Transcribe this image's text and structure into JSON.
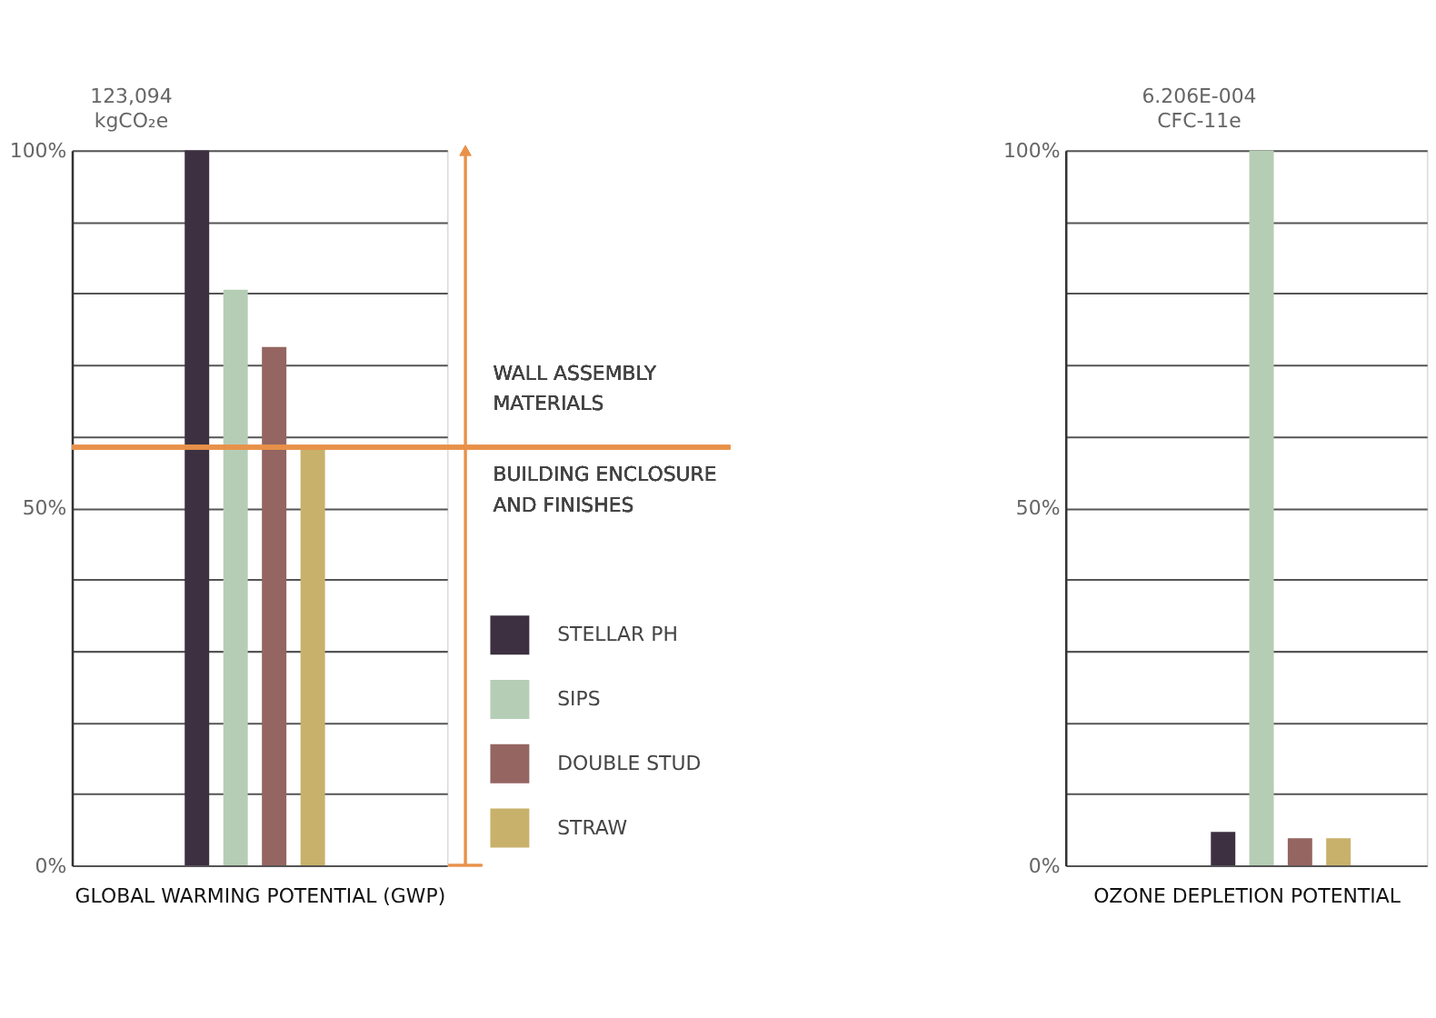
{
  "chart_data": [
    {
      "type": "bar",
      "title": "123,094",
      "subtitle": "kgCO₂e",
      "xlabel": "GLOBAL WARMING POTENTIAL (GWP)",
      "categories": [
        null
      ],
      "series": [
        {
          "name": "STELLAR PH",
          "color": "#3d3141",
          "values": [
            100
          ]
        },
        {
          "name": "SIPS",
          "color": "#b5cdb5",
          "values": [
            80.5
          ]
        },
        {
          "name": "DOUBLE STUD",
          "color": "#946561",
          "values": [
            72.5
          ]
        },
        {
          "name": "STRAW",
          "color": "#c8b16b",
          "values": [
            58.5
          ]
        }
      ],
      "ylim": [
        0,
        100
      ],
      "yticks": [
        {
          "value": 0,
          "label": "0%"
        },
        {
          "value": 10,
          "label": null
        },
        {
          "value": 20,
          "label": null
        },
        {
          "value": 30,
          "label": null
        },
        {
          "value": 40,
          "label": null
        },
        {
          "value": 50,
          "label": "50%"
        },
        {
          "value": 60,
          "label": null
        },
        {
          "value": 70,
          "label": null
        },
        {
          "value": 80,
          "label": null
        },
        {
          "value": 90,
          "label": null
        },
        {
          "value": 100,
          "label": "100%"
        }
      ],
      "ref_lines": [
        {
          "axis": "y",
          "value": 58.5,
          "color": "#e8914a"
        }
      ],
      "annotations": [
        "WALL ASSEMBLY MATERIALS",
        "BUILDING ENCLOSURE AND FINISHES"
      ],
      "grid": "y",
      "legend": "right",
      "tick_labels": "y"
    },
    {
      "type": "bar",
      "title": "6.206E-004",
      "subtitle": "CFC-11e",
      "xlabel": "OZONE DEPLETION POTENTIAL",
      "categories": [
        null
      ],
      "series": [
        {
          "color": "#3d3141",
          "values": [
            4.7
          ]
        },
        {
          "color": "#b5cdb5",
          "values": [
            100
          ]
        },
        {
          "color": "#946561",
          "values": [
            3.8
          ]
        },
        {
          "color": "#c8b16b",
          "values": [
            3.8
          ]
        }
      ],
      "ylim": [
        0,
        100
      ],
      "yticks": [
        {
          "value": 0,
          "label": "0%"
        },
        {
          "value": 10,
          "label": null
        },
        {
          "value": 20,
          "label": null
        },
        {
          "value": 30,
          "label": null
        },
        {
          "value": 40,
          "label": null
        },
        {
          "value": 50,
          "label": "50%"
        },
        {
          "value": 60,
          "label": null
        },
        {
          "value": 70,
          "label": null
        },
        {
          "value": 80,
          "label": null
        },
        {
          "value": 90,
          "label": null
        },
        {
          "value": 100,
          "label": "100%"
        }
      ],
      "grid": "y",
      "legend": false,
      "tick_labels": "y"
    }
  ]
}
